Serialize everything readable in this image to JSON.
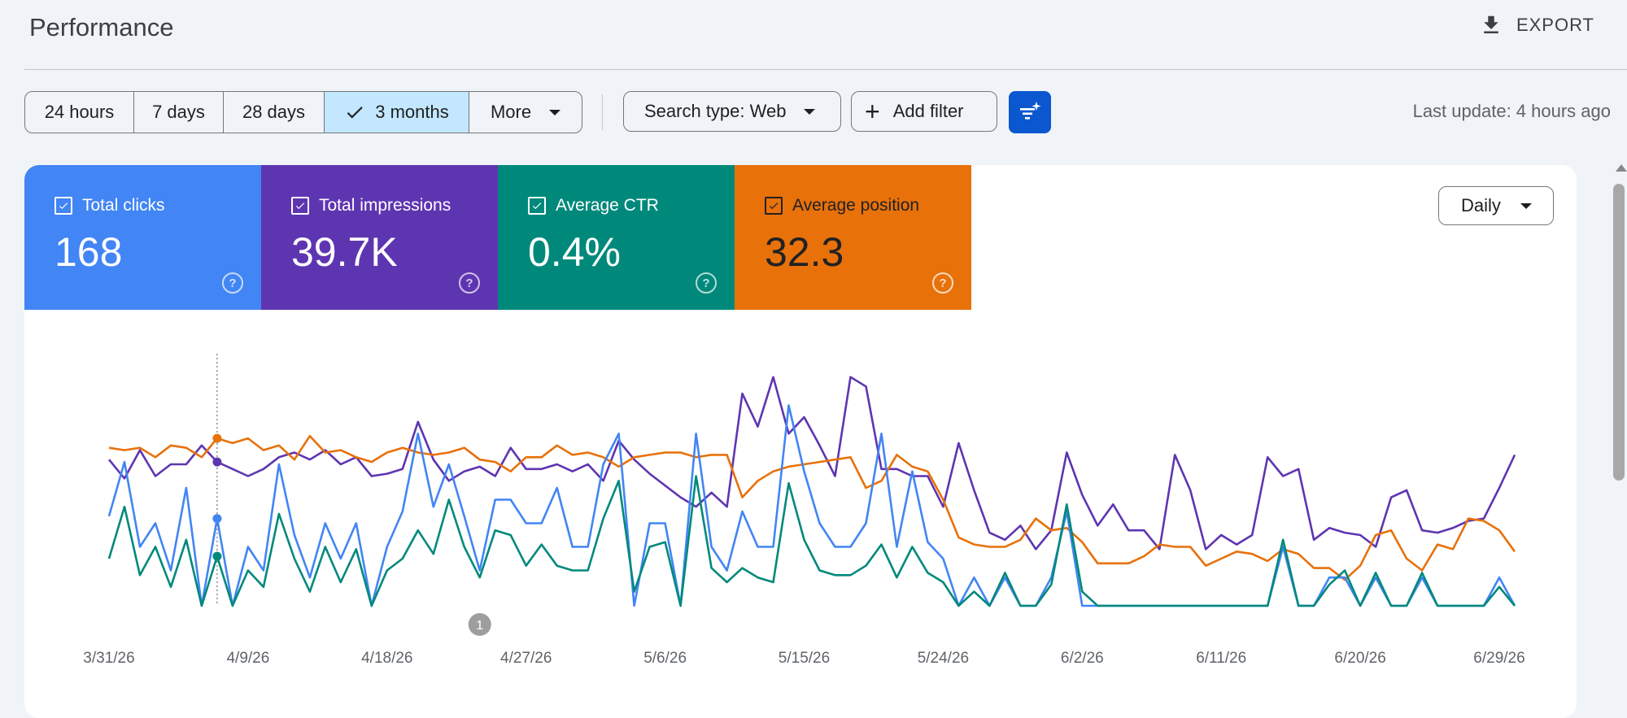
{
  "header": {
    "title": "Performance",
    "export_label": "EXPORT"
  },
  "toolbar": {
    "ranges": [
      "24 hours",
      "7 days",
      "28 days",
      "3 months",
      "More"
    ],
    "selected_range": "3 months",
    "search_type": "Search type: Web",
    "add_filter": "Add filter",
    "last_update": "Last update: 4 hours ago"
  },
  "metrics": [
    {
      "label": "Total clicks",
      "value": "168",
      "color": "#4285f4",
      "checked": true
    },
    {
      "label": "Total impressions",
      "value": "39.7K",
      "color": "#5e35b1",
      "checked": true
    },
    {
      "label": "Average CTR",
      "value": "0.4%",
      "color": "#00897b",
      "checked": true
    },
    {
      "label": "Average position",
      "value": "32.3",
      "color": "#e8710a",
      "checked": true
    }
  ],
  "granularity": {
    "label": "Daily"
  },
  "annotation": {
    "label": "1"
  },
  "chart_data": {
    "type": "line",
    "x_tick_labels": [
      "3/31/26",
      "4/9/26",
      "4/18/26",
      "4/27/26",
      "5/6/26",
      "5/15/26",
      "5/24/26",
      "6/2/26",
      "6/11/26",
      "6/20/26",
      "6/29/26"
    ],
    "x_start": "3/31/26",
    "x_end": "6/30/26",
    "hover_date": "4/7/26",
    "grid": false,
    "series": [
      {
        "name": "Total impressions",
        "color": "#5e35b1",
        "values": [
          0.62,
          0.54,
          0.66,
          0.55,
          0.6,
          0.6,
          0.68,
          0.61,
          0.58,
          0.55,
          0.58,
          0.63,
          0.65,
          0.62,
          0.66,
          0.6,
          0.63,
          0.55,
          0.56,
          0.58,
          0.78,
          0.62,
          0.53,
          0.57,
          0.59,
          0.55,
          0.67,
          0.58,
          0.58,
          0.6,
          0.57,
          0.6,
          0.53,
          0.7,
          0.62,
          0.56,
          0.51,
          0.46,
          0.42,
          0.48,
          0.42,
          0.9,
          0.76,
          0.97,
          0.73,
          0.8,
          0.68,
          0.55,
          0.97,
          0.93,
          0.58,
          0.58,
          0.55,
          0.55,
          0.42,
          0.69,
          0.49,
          0.31,
          0.28,
          0.34,
          0.24,
          0.32,
          0.65,
          0.47,
          0.34,
          0.43,
          0.32,
          0.32,
          0.24,
          0.64,
          0.49,
          0.24,
          0.3,
          0.26,
          0.3,
          0.63,
          0.55,
          0.58,
          0.28,
          0.33,
          0.31,
          0.3,
          0.25,
          0.46,
          0.49,
          0.32,
          0.31,
          0.33,
          0.36,
          0.37,
          0.5,
          0.64
        ]
      },
      {
        "name": "Average position",
        "color": "#e8710a",
        "values": [
          0.67,
          0.66,
          0.67,
          0.63,
          0.68,
          0.67,
          0.63,
          0.71,
          0.69,
          0.71,
          0.66,
          0.68,
          0.62,
          0.72,
          0.65,
          0.66,
          0.63,
          0.61,
          0.65,
          0.67,
          0.65,
          0.64,
          0.65,
          0.67,
          0.62,
          0.61,
          0.57,
          0.63,
          0.63,
          0.68,
          0.64,
          0.65,
          0.63,
          0.59,
          0.63,
          0.64,
          0.65,
          0.65,
          0.63,
          0.64,
          0.64,
          0.46,
          0.53,
          0.57,
          0.59,
          0.6,
          0.61,
          0.62,
          0.63,
          0.5,
          0.53,
          0.64,
          0.59,
          0.57,
          0.45,
          0.29,
          0.26,
          0.25,
          0.25,
          0.28,
          0.37,
          0.32,
          0.33,
          0.27,
          0.18,
          0.18,
          0.18,
          0.21,
          0.26,
          0.25,
          0.25,
          0.17,
          0.2,
          0.23,
          0.22,
          0.19,
          0.24,
          0.22,
          0.16,
          0.16,
          0.11,
          0.17,
          0.3,
          0.32,
          0.2,
          0.15,
          0.26,
          0.24,
          0.37,
          0.36,
          0.32,
          0.23
        ]
      },
      {
        "name": "Total clicks",
        "color": "#4285f4",
        "values": [
          0.38,
          0.61,
          0.25,
          0.35,
          0.15,
          0.5,
          0.0,
          0.37,
          0.0,
          0.25,
          0.15,
          0.6,
          0.3,
          0.12,
          0.35,
          0.2,
          0.35,
          0.0,
          0.25,
          0.4,
          0.73,
          0.42,
          0.6,
          0.38,
          0.15,
          0.45,
          0.45,
          0.35,
          0.35,
          0.5,
          0.25,
          0.25,
          0.6,
          0.73,
          0.0,
          0.35,
          0.35,
          0.0,
          0.73,
          0.25,
          0.15,
          0.4,
          0.25,
          0.25,
          0.85,
          0.57,
          0.35,
          0.25,
          0.25,
          0.35,
          0.73,
          0.25,
          0.57,
          0.27,
          0.2,
          0.0,
          0.12,
          0.0,
          0.12,
          0.0,
          0.0,
          0.12,
          0.4,
          0.0,
          0.0,
          0.0,
          0.0,
          0.0,
          0.0,
          0.0,
          0.0,
          0.0,
          0.0,
          0.0,
          0.0,
          0.0,
          0.25,
          0.0,
          0.0,
          0.12,
          0.12,
          0.0,
          0.12,
          0.0,
          0.0,
          0.12,
          0.0,
          0.0,
          0.0,
          0.0,
          0.12,
          0.0
        ]
      },
      {
        "name": "Average CTR",
        "color": "#00897b",
        "values": [
          0.2,
          0.42,
          0.13,
          0.25,
          0.08,
          0.28,
          0.0,
          0.21,
          0.0,
          0.15,
          0.08,
          0.39,
          0.2,
          0.06,
          0.25,
          0.1,
          0.24,
          0.0,
          0.15,
          0.2,
          0.32,
          0.22,
          0.45,
          0.25,
          0.12,
          0.32,
          0.3,
          0.17,
          0.26,
          0.17,
          0.15,
          0.15,
          0.37,
          0.53,
          0.06,
          0.25,
          0.27,
          0.0,
          0.55,
          0.16,
          0.1,
          0.16,
          0.12,
          0.1,
          0.52,
          0.28,
          0.15,
          0.13,
          0.13,
          0.17,
          0.26,
          0.12,
          0.25,
          0.14,
          0.1,
          0.0,
          0.06,
          0.0,
          0.14,
          0.0,
          0.0,
          0.09,
          0.43,
          0.06,
          0.0,
          0.0,
          0.0,
          0.0,
          0.0,
          0.0,
          0.0,
          0.0,
          0.0,
          0.0,
          0.0,
          0.0,
          0.28,
          0.0,
          0.0,
          0.09,
          0.15,
          0.0,
          0.14,
          0.0,
          0.0,
          0.14,
          0.0,
          0.0,
          0.0,
          0.0,
          0.08,
          0.0
        ]
      }
    ]
  }
}
